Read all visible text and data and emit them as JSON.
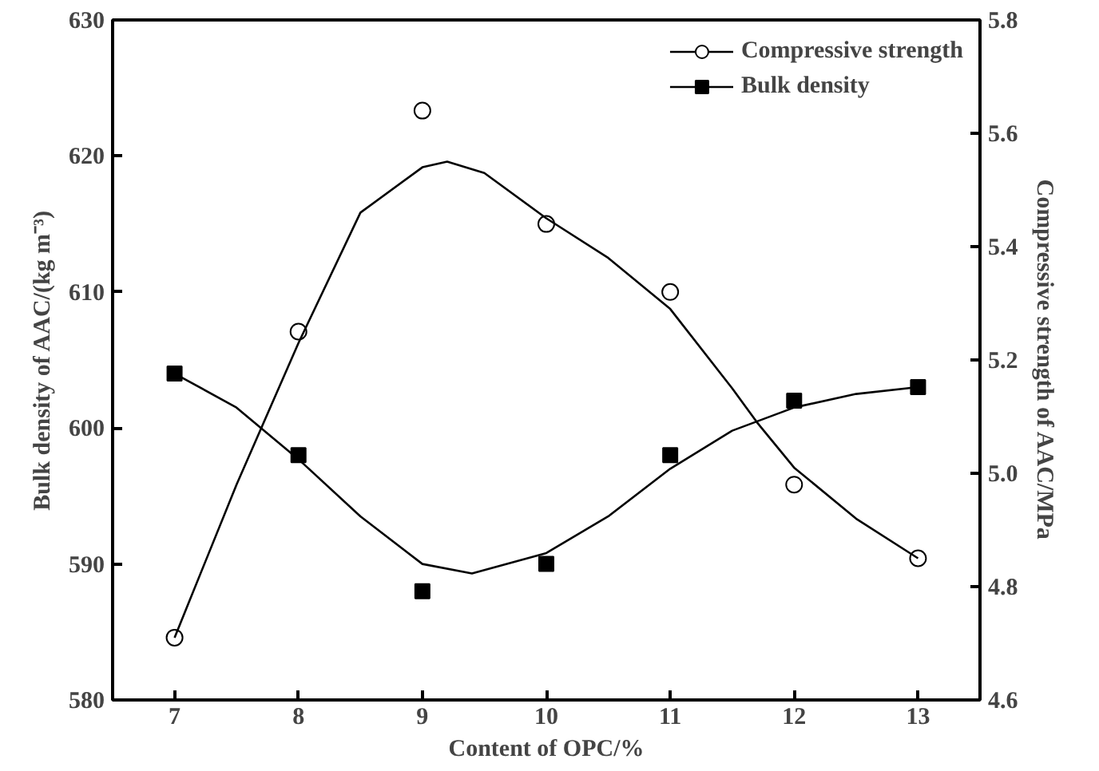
{
  "chart_data": {
    "type": "scatter",
    "xlabel": "Content of OPC/%",
    "ylabel": "Bulk density of AAC/(kg m⁻³)",
    "y2label": "Compressive strength of AAC/MPa",
    "x": [
      7,
      8,
      9,
      10,
      11,
      12,
      13
    ],
    "series": [
      {
        "name": "Compressive strength",
        "color": "#000000",
        "marker": "circle",
        "axis": "y2",
        "values": [
          4.71,
          5.25,
          5.64,
          5.44,
          5.32,
          4.98,
          4.85
        ]
      },
      {
        "name": "Bulk density",
        "color": "#000000",
        "marker": "square",
        "values": [
          604,
          598,
          588,
          590,
          598,
          602,
          603
        ]
      },
      {
        "type": "line",
        "color": "#000000",
        "axis": "y2",
        "x": [
          7,
          7.5,
          8,
          8.5,
          9,
          9.2,
          9.5,
          10,
          10.5,
          11,
          11.5,
          11.7,
          12,
          12.5,
          13
        ],
        "values": [
          4.71,
          4.98,
          5.23,
          5.46,
          5.54,
          5.55,
          5.53,
          5.45,
          5.38,
          5.29,
          5.15,
          5.09,
          5.01,
          4.92,
          4.85
        ]
      },
      {
        "type": "line",
        "color": "#000000",
        "x": [
          7,
          7.5,
          8,
          8.5,
          9,
          9.4,
          10,
          10.5,
          11,
          11.5,
          12,
          12.5,
          13
        ],
        "values": [
          604,
          601.5,
          597.7,
          593.5,
          590,
          589.3,
          590.8,
          593.5,
          597,
          599.8,
          601.5,
          602.5,
          603
        ]
      }
    ],
    "xlim": [
      6.5,
      13.5
    ],
    "xticks": [
      7,
      8,
      9,
      10,
      11,
      12,
      13
    ],
    "ylim": [
      580,
      630
    ],
    "yticks": [
      580,
      590,
      600,
      610,
      620,
      630
    ],
    "y2lim": [
      4.6,
      5.8
    ],
    "y2ticks": [
      4.6,
      4.8,
      {
        "value": 5.0,
        "label": "5.0"
      },
      5.2,
      5.4,
      5.6,
      5.8
    ],
    "legend": "top right",
    "grid": false
  }
}
